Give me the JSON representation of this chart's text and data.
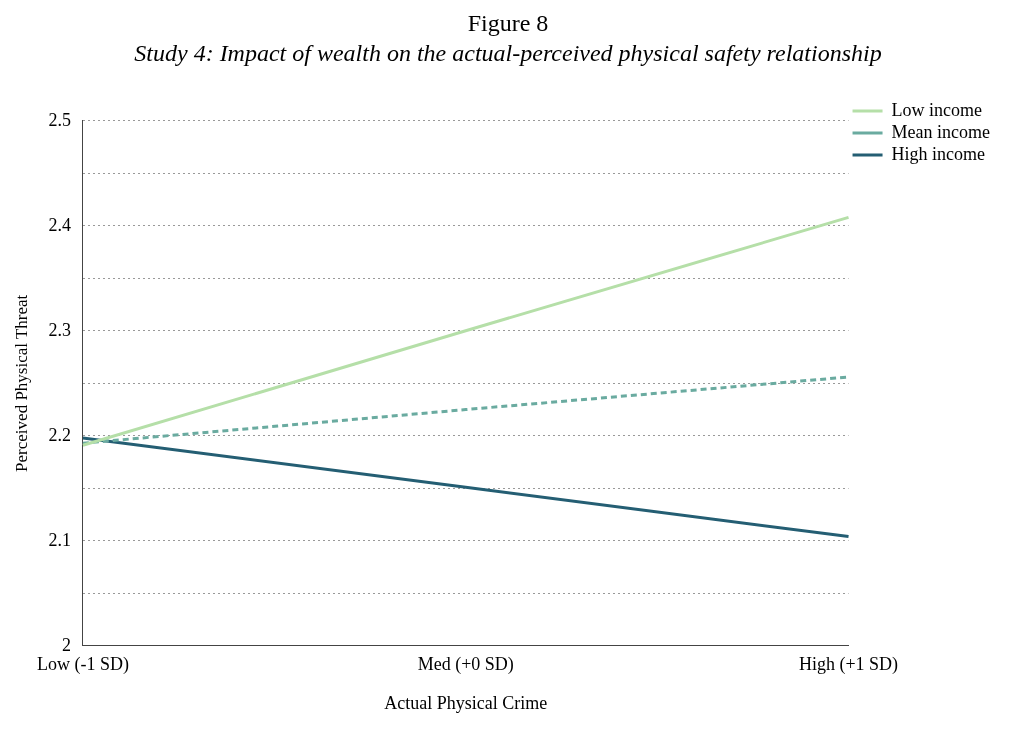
{
  "chart_data": {
    "type": "line",
    "title": "Figure 8",
    "subtitle": "Study 4: Impact of wealth on the actual-perceived physical safety relationship",
    "xlabel": "Actual Physical Crime",
    "ylabel": "Perceived Physical Threat",
    "categories": [
      "Low (-1 SD)",
      "Med (+0 SD)",
      "High (+1 SD)"
    ],
    "series": [
      {
        "name": "Low income",
        "color": "#b5dfa8",
        "values": [
          2.191,
          2.3,
          2.408
        ],
        "line_style": "solid"
      },
      {
        "name": "Mean income",
        "color": "#6aaba0",
        "values": [
          2.193,
          2.225,
          2.256
        ],
        "line_style": "dashed"
      },
      {
        "name": "High income",
        "color": "#245e73",
        "values": [
          2.198,
          2.151,
          2.104
        ],
        "line_style": "solid"
      }
    ],
    "ylim": [
      2,
      2.5
    ],
    "yticks": [
      2,
      {
        "value": 2.05,
        "label": null
      },
      2.1,
      {
        "value": 2.15,
        "label": null
      },
      2.2,
      {
        "value": 2.25,
        "label": null
      },
      2.3,
      {
        "value": 2.35,
        "label": null
      },
      2.4,
      {
        "value": 2.45,
        "label": null
      },
      2.5
    ],
    "grid": "y",
    "legend": "top right",
    "marker": "none"
  }
}
